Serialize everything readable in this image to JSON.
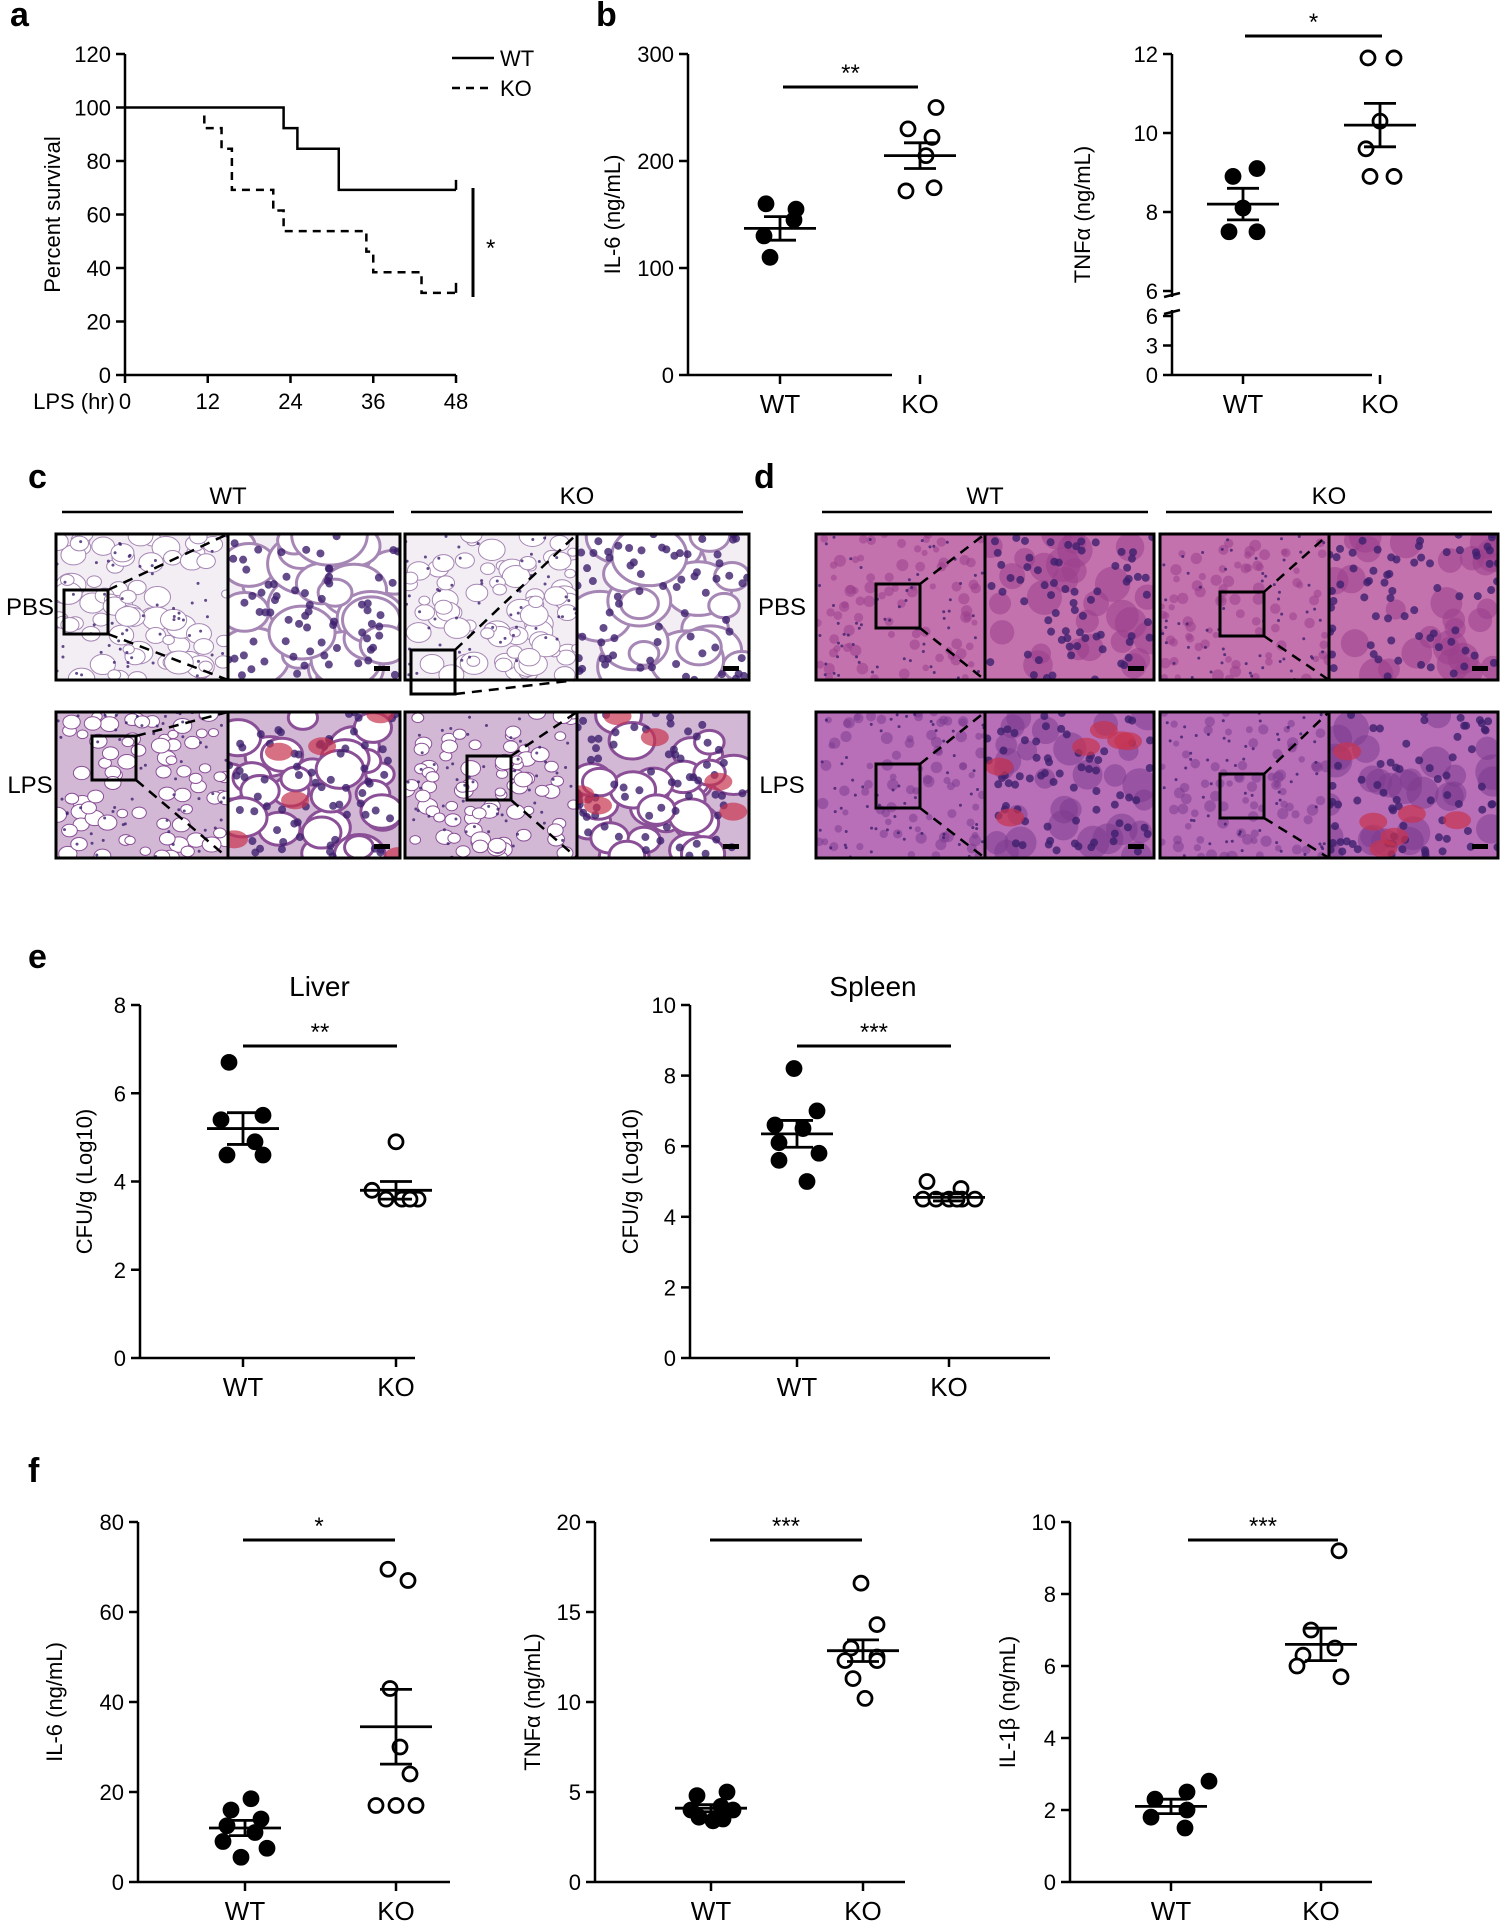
{
  "panel_labels": [
    "a",
    "b",
    "c",
    "d",
    "e",
    "f"
  ],
  "chart_data": [
    {
      "id": "a",
      "type": "line",
      "title": "",
      "xlabel": "LPS (hr)",
      "ylabel": "Percent survival",
      "xlim": [
        0,
        48
      ],
      "ylim": [
        0,
        120
      ],
      "xticks": [
        "0",
        "12",
        "24",
        "36",
        "48"
      ],
      "yticks": [
        "0",
        "20",
        "40",
        "60",
        "80",
        "100",
        "120"
      ],
      "series": [
        {
          "name": "WT",
          "style": "solid",
          "x": [
            0,
            23,
            23,
            25,
            25,
            31,
            31,
            48
          ],
          "y": [
            100,
            100,
            92.3,
            92.3,
            84.6,
            84.6,
            69.2,
            69.2
          ]
        },
        {
          "name": "KO",
          "style": "dashed",
          "x": [
            11.5,
            11.5,
            14,
            14,
            15.5,
            15.5,
            21.5,
            21.5,
            23,
            23,
            35,
            35,
            36,
            36,
            43,
            43,
            48
          ],
          "y": [
            97,
            92.3,
            92.3,
            84.6,
            84.6,
            69.2,
            69.2,
            61.5,
            61.5,
            53.8,
            53.8,
            46.1,
            46.1,
            38.4,
            38.4,
            30.7,
            30.7
          ]
        }
      ],
      "legend": [
        "WT",
        "KO"
      ],
      "significance": "*"
    },
    {
      "id": "b1",
      "type": "scatter",
      "ylabel": "IL-6 (ng/mL)",
      "ylim": [
        0,
        300
      ],
      "yticks": [
        "0",
        "100",
        "200",
        "300"
      ],
      "categories": [
        "WT",
        "KO"
      ],
      "groups": [
        {
          "name": "WT",
          "fill": "filled",
          "values": [
            155,
            160,
            145,
            130,
            110
          ],
          "mean": 137,
          "sem": 11
        },
        {
          "name": "KO",
          "fill": "open",
          "values": [
            250,
            222,
            230,
            205,
            172,
            175
          ],
          "mean": 205,
          "sem": 12
        }
      ],
      "significance": "**"
    },
    {
      "id": "b2",
      "type": "scatter",
      "ylabel": "TNFα (ng/mL)",
      "ylim": [
        0,
        12
      ],
      "axis_break": [
        6,
        6
      ],
      "yticks": [
        "0",
        "3",
        "6",
        "6",
        "8",
        "10",
        "12"
      ],
      "categories": [
        "WT",
        "KO"
      ],
      "groups": [
        {
          "name": "WT",
          "fill": "filled",
          "values": [
            8.9,
            9.1,
            8.1,
            7.5,
            7.5
          ],
          "mean": 8.2,
          "sem": 0.4
        },
        {
          "name": "KO",
          "fill": "open",
          "values": [
            11.9,
            11.9,
            10.3,
            9.6,
            8.9,
            8.9
          ],
          "mean": 10.2,
          "sem": 0.55
        },
        {
          "name": "",
          "fill": "open",
          "values": [],
          "mean": null,
          "sem": null
        }
      ],
      "significance": "*"
    },
    {
      "id": "e1",
      "type": "scatter",
      "title": "Liver",
      "ylabel": "CFU/g (Log10)",
      "ylim": [
        0,
        8
      ],
      "yticks": [
        "0",
        "2",
        "4",
        "6",
        "8"
      ],
      "categories": [
        "WT",
        "KO"
      ],
      "groups": [
        {
          "name": "WT",
          "fill": "filled",
          "values": [
            6.7,
            5.5,
            5.4,
            4.9,
            4.6,
            4.6
          ],
          "mean": 5.2,
          "sem": 0.36
        },
        {
          "name": "KO",
          "fill": "open",
          "values": [
            4.9,
            3.8,
            3.6,
            3.6,
            3.6,
            3.6
          ],
          "mean": 3.8,
          "sem": 0.2
        },
        {
          "name": "",
          "fill": "open",
          "values": [],
          "mean": null,
          "sem": null
        }
      ],
      "significance": "**"
    },
    {
      "id": "e2",
      "type": "scatter",
      "title": "Spleen",
      "ylabel": "CFU/g (Log10)",
      "ylim": [
        0,
        10
      ],
      "yticks": [
        "0",
        "2",
        "4",
        "6",
        "8",
        "10"
      ],
      "categories": [
        "WT",
        "KO"
      ],
      "groups": [
        {
          "name": "WT",
          "fill": "filled",
          "values": [
            8.2,
            7.0,
            6.6,
            6.5,
            6.1,
            5.8,
            5.6,
            5.0
          ],
          "mean": 6.35,
          "sem": 0.38
        },
        {
          "name": "KO",
          "fill": "open",
          "values": [
            5.0,
            4.8,
            4.5,
            4.5,
            4.5,
            4.5,
            4.5,
            4.5
          ],
          "mean": 4.55,
          "sem": 0.1
        }
      ],
      "significance": "***"
    },
    {
      "id": "f1",
      "type": "scatter",
      "ylabel": "IL-6 (ng/mL)",
      "ylim": [
        0,
        80
      ],
      "yticks": [
        "0",
        "20",
        "40",
        "60",
        "80"
      ],
      "categories": [
        "WT",
        "KO"
      ],
      "groups": [
        {
          "name": "WT",
          "fill": "filled",
          "values": [
            18.5,
            16,
            14,
            12.5,
            11,
            9,
            7.5,
            5.5
          ],
          "mean": 12,
          "sem": 1.7
        },
        {
          "name": "KO",
          "fill": "open",
          "values": [
            69.5,
            67,
            43,
            30,
            24,
            17,
            17,
            17
          ],
          "mean": 34.5,
          "sem": 8.3
        },
        {
          "name": "",
          "fill": "open",
          "values": [],
          "mean": null,
          "sem": null
        }
      ],
      "significance": "*"
    },
    {
      "id": "f2",
      "type": "scatter",
      "ylabel": "TNFα (ng/mL)",
      "ylim": [
        0,
        20
      ],
      "yticks": [
        "0",
        "5",
        "10",
        "15",
        "20"
      ],
      "categories": [
        "WT",
        "KO"
      ],
      "groups": [
        {
          "name": "WT",
          "fill": "filled",
          "values": [
            5.0,
            4.8,
            4.2,
            4.0,
            4.0,
            3.6,
            3.5,
            3.4
          ],
          "mean": 4.1,
          "sem": 0.2
        },
        {
          "name": "KO",
          "fill": "open",
          "values": [
            16.6,
            14.3,
            13.0,
            12.5,
            12.3,
            12.3,
            11.3,
            10.2
          ],
          "mean": 12.85,
          "sem": 0.6
        },
        {
          "name": "",
          "fill": "open",
          "values": [],
          "mean": null,
          "sem": null
        }
      ],
      "significance": "***"
    },
    {
      "id": "f3",
      "type": "scatter",
      "ylabel": "IL-1β (ng/mL)",
      "ylim": [
        0,
        10
      ],
      "yticks": [
        "0",
        "2",
        "4",
        "6",
        "8",
        "10"
      ],
      "categories": [
        "WT",
        "KO"
      ],
      "groups": [
        {
          "name": "WT",
          "fill": "filled",
          "values": [
            2.8,
            2.5,
            2.3,
            2.0,
            1.8,
            1.5
          ],
          "mean": 2.1,
          "sem": 0.2
        },
        {
          "name": "KO",
          "fill": "open",
          "values": [
            9.2,
            7.0,
            6.5,
            6.3,
            6.0,
            5.7
          ],
          "mean": 6.6,
          "sem": 0.45
        }
      ],
      "significance": "***"
    }
  ],
  "histology": {
    "c": {
      "groups": [
        "WT",
        "KO"
      ],
      "rows": [
        "PBS",
        "LPS"
      ]
    },
    "d": {
      "groups": [
        "WT",
        "KO"
      ],
      "rows": [
        "PBS",
        "LPS"
      ]
    }
  }
}
